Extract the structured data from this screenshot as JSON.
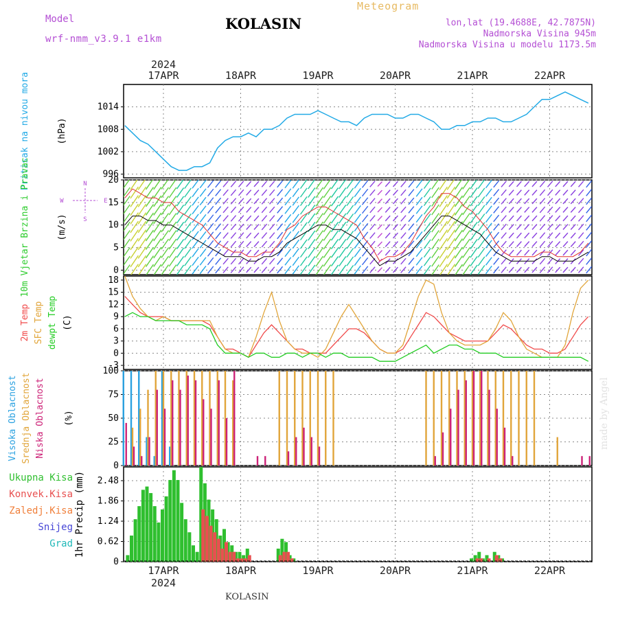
{
  "header": {
    "model_label": "Model",
    "model_value": "wrf-nmm_v3.9.1 e1km",
    "station": "KOLASIN",
    "meteogram": "Meteogram",
    "coords": "lon,lat (19.4688E, 42.7875N)",
    "elevation": "Nadmorska Visina 945m",
    "elevation_model": "Nadmorska Visina u modelu 1173.5m"
  },
  "footer": {
    "station": "KOLASIN"
  },
  "credit": "made by Angel",
  "dates": {
    "year": "2024",
    "labels": [
      "17APR",
      "18APR",
      "19APR",
      "20APR",
      "21APR",
      "22APR"
    ]
  },
  "colors": {
    "pressure": "#22aae6",
    "wind_label": "#2ecc2e",
    "t2m": "#f04a4a",
    "sfc": "#e1a53a",
    "dew": "#22cc22",
    "high_cloud": "#2aa1e0",
    "mid_cloud": "#e1a53a",
    "low_cloud": "#cc2277",
    "precip_total": "#2fbf2f",
    "precip_conv": "#e85050",
    "precip_frozen": "#f07f3a",
    "snow": "#4646d6",
    "graupel": "#20b8b8",
    "wind_dir": "#b44fd4"
  },
  "chart_data": [
    {
      "type": "line",
      "name": "pressure",
      "ylabel": "Pritisak na nivou mora",
      "unit": "(hPa)",
      "ylim": [
        995,
        1020
      ],
      "yticks": [
        996,
        1002,
        1008,
        1014
      ],
      "grid": true,
      "x_day": [
        -0.5,
        -0.4,
        -0.3,
        -0.2,
        -0.1,
        0.0,
        0.1,
        0.2,
        0.3,
        0.4,
        0.5,
        0.6,
        0.7,
        0.8,
        0.9,
        1.0,
        1.1,
        1.2,
        1.3,
        1.4,
        1.5,
        1.6,
        1.7,
        1.8,
        1.9,
        2.0,
        2.1,
        2.2,
        2.3,
        2.4,
        2.5,
        2.6,
        2.7,
        2.8,
        2.9,
        3.0,
        3.1,
        3.2,
        3.3,
        3.4,
        3.5,
        3.6,
        3.7,
        3.8,
        3.9,
        4.0,
        4.1,
        4.2,
        4.3,
        4.4,
        4.5,
        4.6,
        4.7,
        4.8,
        4.9,
        5.0,
        5.1,
        5.2,
        5.3,
        5.4,
        5.5
      ],
      "values": [
        1009,
        1007,
        1005,
        1004,
        1002,
        1000,
        998,
        997,
        997,
        998,
        998,
        999,
        1003,
        1005,
        1006,
        1006,
        1007,
        1006,
        1008,
        1008,
        1009,
        1011,
        1012,
        1012,
        1012,
        1013,
        1012,
        1011,
        1010,
        1010,
        1009,
        1011,
        1012,
        1012,
        1012,
        1011,
        1011,
        1012,
        1012,
        1011,
        1010,
        1008,
        1008,
        1009,
        1009,
        1010,
        1010,
        1011,
        1011,
        1010,
        1010,
        1011,
        1012,
        1014,
        1016,
        1016,
        1017,
        1018,
        1017,
        1016,
        1015
      ]
    },
    {
      "type": "line",
      "name": "wind",
      "ylabel": "10m Vjetar Brzina i Pravac",
      "unit": "(m/s)",
      "ylim": [
        -1,
        20
      ],
      "yticks": [
        0,
        5,
        10,
        15,
        20
      ],
      "compass": {
        "n": "N",
        "s": "S",
        "w": "W",
        "e": "E"
      },
      "grid": true,
      "x_day": [
        -0.5,
        -0.4,
        -0.3,
        -0.2,
        -0.1,
        0.0,
        0.1,
        0.2,
        0.3,
        0.4,
        0.5,
        0.6,
        0.7,
        0.8,
        0.9,
        1.0,
        1.1,
        1.2,
        1.3,
        1.4,
        1.5,
        1.6,
        1.7,
        1.8,
        1.9,
        2.0,
        2.1,
        2.2,
        2.3,
        2.4,
        2.5,
        2.6,
        2.7,
        2.8,
        2.9,
        3.0,
        3.1,
        3.2,
        3.3,
        3.4,
        3.5,
        3.6,
        3.7,
        3.8,
        3.9,
        4.0,
        4.1,
        4.2,
        4.3,
        4.4,
        4.5,
        4.6,
        4.7,
        4.8,
        4.9,
        5.0,
        5.1,
        5.2,
        5.3,
        5.4,
        5.5
      ],
      "speed": [
        10,
        12,
        12,
        11,
        11,
        10,
        10,
        9,
        8,
        7,
        6,
        5,
        4,
        3,
        3,
        3,
        2,
        2,
        3,
        3,
        4,
        6,
        7,
        8,
        9,
        10,
        10,
        9,
        9,
        8,
        7,
        5,
        3,
        1,
        2,
        2,
        3,
        4,
        6,
        8,
        10,
        12,
        12,
        11,
        10,
        9,
        8,
        6,
        4,
        3,
        2,
        2,
        2,
        2,
        3,
        3,
        2,
        2,
        2,
        3,
        4
      ],
      "gust": [
        16,
        18,
        17,
        16,
        16,
        15,
        15,
        13,
        12,
        11,
        10,
        8,
        6,
        5,
        4,
        4,
        3,
        3,
        4,
        4,
        6,
        9,
        10,
        12,
        13,
        14,
        14,
        13,
        12,
        11,
        10,
        7,
        5,
        2,
        3,
        3,
        4,
        6,
        9,
        12,
        14,
        17,
        17,
        16,
        14,
        13,
        11,
        9,
        6,
        4,
        3,
        3,
        3,
        3,
        4,
        4,
        3,
        3,
        3,
        4,
        6
      ]
    },
    {
      "type": "line",
      "name": "temperature",
      "ylabel": [
        "2m Temp",
        "SFC Temp",
        "dewpt Temp"
      ],
      "unit": "(C)",
      "ylim": [
        -4,
        19
      ],
      "yticks": [
        -3,
        0,
        3,
        6,
        9,
        12,
        15,
        18
      ],
      "grid": true,
      "x_day": [
        -0.5,
        -0.4,
        -0.3,
        -0.2,
        -0.1,
        0.0,
        0.1,
        0.2,
        0.3,
        0.4,
        0.5,
        0.6,
        0.7,
        0.8,
        0.9,
        1.0,
        1.1,
        1.2,
        1.3,
        1.4,
        1.5,
        1.6,
        1.7,
        1.8,
        1.9,
        2.0,
        2.1,
        2.2,
        2.3,
        2.4,
        2.5,
        2.6,
        2.7,
        2.8,
        2.9,
        3.0,
        3.1,
        3.2,
        3.3,
        3.4,
        3.5,
        3.6,
        3.7,
        3.8,
        3.9,
        4.0,
        4.1,
        4.2,
        4.3,
        4.4,
        4.5,
        4.6,
        4.7,
        4.8,
        4.9,
        5.0,
        5.1,
        5.2,
        5.3,
        5.4,
        5.5
      ],
      "series": [
        {
          "name": "2m Temp",
          "values": [
            14,
            12,
            10,
            9,
            9,
            9,
            8,
            8,
            8,
            8,
            8,
            7,
            4,
            1,
            1,
            0,
            -1,
            2,
            5,
            7,
            5,
            3,
            1,
            1,
            0,
            0,
            0,
            2,
            4,
            6,
            6,
            5,
            3,
            1,
            0,
            0,
            1,
            4,
            7,
            10,
            9,
            7,
            5,
            4,
            3,
            3,
            3,
            3,
            5,
            7,
            6,
            4,
            2,
            1,
            1,
            0,
            0,
            1,
            4,
            7,
            9
          ]
        },
        {
          "name": "SFC Temp",
          "values": [
            19,
            14,
            11,
            9,
            8,
            9,
            8,
            8,
            8,
            8,
            8,
            8,
            4,
            1,
            0,
            0,
            -1,
            4,
            10,
            15,
            8,
            3,
            1,
            0,
            0,
            -1,
            1,
            5,
            9,
            12,
            9,
            6,
            3,
            1,
            0,
            0,
            2,
            8,
            14,
            18,
            17,
            10,
            5,
            3,
            2,
            2,
            2,
            3,
            6,
            10,
            8,
            4,
            1,
            0,
            -1,
            -1,
            -1,
            2,
            10,
            16,
            18
          ]
        },
        {
          "name": "dewpt Temp",
          "values": [
            9,
            10,
            9,
            9,
            8,
            8,
            8,
            8,
            7,
            7,
            7,
            6,
            2,
            0,
            0,
            0,
            -1,
            0,
            0,
            -1,
            -1,
            0,
            0,
            -1,
            0,
            0,
            -1,
            0,
            0,
            -1,
            -1,
            -1,
            -1,
            -2,
            -2,
            -2,
            -1,
            0,
            1,
            2,
            0,
            1,
            2,
            2,
            1,
            1,
            0,
            0,
            0,
            -1,
            -1,
            -1,
            -1,
            -1,
            -1,
            -1,
            -1,
            -1,
            -1,
            -1,
            -2
          ]
        }
      ]
    },
    {
      "type": "bar",
      "name": "cloud cover",
      "ylabel": [
        "Visoka Oblacnost",
        "Srednja Oblacnost",
        "Niska Oblacnost"
      ],
      "unit": "(%)",
      "ylim": [
        0,
        100
      ],
      "yticks": [
        0,
        25,
        50,
        75,
        100
      ],
      "grid": true,
      "x_day": [
        -0.5,
        -0.4,
        -0.3,
        -0.2,
        -0.1,
        0.0,
        0.1,
        0.2,
        0.3,
        0.4,
        0.5,
        0.6,
        0.7,
        0.8,
        0.9,
        1.0,
        1.1,
        1.2,
        1.3,
        1.4,
        1.5,
        1.6,
        1.7,
        1.8,
        1.9,
        2.0,
        2.1,
        2.2,
        2.3,
        2.4,
        2.5,
        2.6,
        2.7,
        2.8,
        2.9,
        3.0,
        3.1,
        3.2,
        3.3,
        3.4,
        3.5,
        3.6,
        3.7,
        3.8,
        3.9,
        4.0,
        4.1,
        4.2,
        4.3,
        4.4,
        4.5,
        4.6,
        4.7,
        4.8,
        4.9,
        5.0,
        5.1,
        5.2,
        5.3,
        5.4,
        5.5
      ],
      "series": [
        {
          "name": "Visoka Oblacnost",
          "values": [
            100,
            100,
            100,
            30,
            10,
            100,
            20,
            0,
            0,
            0,
            0,
            0,
            0,
            0,
            0,
            0,
            0,
            0,
            0,
            0,
            0,
            0,
            0,
            0,
            0,
            0,
            0,
            0,
            0,
            0,
            0,
            0,
            0,
            0,
            0,
            0,
            0,
            0,
            0,
            0,
            0,
            0,
            0,
            0,
            0,
            0,
            0,
            0,
            0,
            0,
            0,
            0,
            0,
            0,
            0,
            0,
            0,
            0,
            0,
            0,
            0
          ]
        },
        {
          "name": "Srednja Oblacnost",
          "values": [
            0,
            40,
            60,
            80,
            100,
            100,
            100,
            100,
            100,
            100,
            100,
            100,
            100,
            100,
            90,
            0,
            0,
            0,
            0,
            0,
            100,
            100,
            100,
            100,
            100,
            100,
            100,
            100,
            0,
            0,
            0,
            0,
            0,
            0,
            0,
            0,
            0,
            0,
            0,
            100,
            100,
            100,
            100,
            100,
            100,
            100,
            100,
            100,
            100,
            100,
            100,
            100,
            100,
            100,
            0,
            0,
            30,
            0,
            0,
            0,
            0
          ]
        },
        {
          "name": "Niska Oblacnost",
          "values": [
            45,
            20,
            10,
            30,
            80,
            60,
            90,
            80,
            95,
            90,
            70,
            60,
            90,
            50,
            100,
            0,
            0,
            10,
            10,
            0,
            0,
            15,
            30,
            40,
            30,
            20,
            0,
            0,
            0,
            0,
            0,
            0,
            0,
            0,
            0,
            0,
            0,
            0,
            0,
            0,
            10,
            35,
            60,
            80,
            90,
            100,
            100,
            80,
            60,
            40,
            10,
            0,
            0,
            0,
            0,
            0,
            0,
            0,
            0,
            10,
            10
          ]
        }
      ]
    },
    {
      "type": "bar",
      "name": "precipitation",
      "ylabel": "1hr Precip",
      "unit": "(mm)",
      "ylim": [
        0,
        2.9
      ],
      "yticks": [
        0,
        0.62,
        1.24,
        1.86,
        2.48
      ],
      "legend": [
        "Ukupna Kisa",
        "Konvek.Kisa",
        "Zaledj.Kisa",
        "Snijeg",
        "Grad"
      ],
      "grid": true,
      "x_day": [
        -0.45,
        -0.4,
        -0.35,
        -0.3,
        -0.25,
        -0.2,
        -0.15,
        -0.1,
        -0.05,
        0.0,
        0.05,
        0.1,
        0.15,
        0.2,
        0.25,
        0.3,
        0.35,
        0.4,
        0.45,
        0.5,
        0.55,
        0.6,
        0.65,
        0.7,
        0.75,
        0.8,
        0.85,
        0.9,
        0.95,
        1.0,
        1.05,
        1.1,
        1.5,
        1.55,
        1.6,
        1.65,
        1.7,
        4.0,
        4.05,
        4.1,
        4.15,
        4.2,
        4.3,
        4.35,
        4.4
      ],
      "series": [
        {
          "name": "Ukupna Kisa",
          "values": [
            0.2,
            0.8,
            1.3,
            1.7,
            2.2,
            2.3,
            2.1,
            1.7,
            1.2,
            1.6,
            2.0,
            2.5,
            2.8,
            2.5,
            1.8,
            1.3,
            0.9,
            0.5,
            0.3,
            2.9,
            2.4,
            1.9,
            1.6,
            1.3,
            0.8,
            1.0,
            0.6,
            0.5,
            0.3,
            0.3,
            0.2,
            0.4,
            0.4,
            0.7,
            0.6,
            0.2,
            0.1,
            0.1,
            0.2,
            0.3,
            0.1,
            0.2,
            0.3,
            0.2,
            0.1
          ]
        },
        {
          "name": "Konvek.Kisa",
          "values": [
            0,
            0,
            0,
            0,
            0,
            0,
            0,
            0,
            0,
            0,
            0,
            0,
            0,
            0,
            0,
            0,
            0,
            0,
            0,
            1.6,
            1.4,
            1.1,
            0.9,
            0.7,
            0.4,
            0.6,
            0.3,
            0.3,
            0.1,
            0.1,
            0.1,
            0.2,
            0.2,
            0.3,
            0.3,
            0.1,
            0,
            0,
            0.1,
            0.1,
            0,
            0.1,
            0.2,
            0.1,
            0
          ]
        }
      ]
    }
  ]
}
